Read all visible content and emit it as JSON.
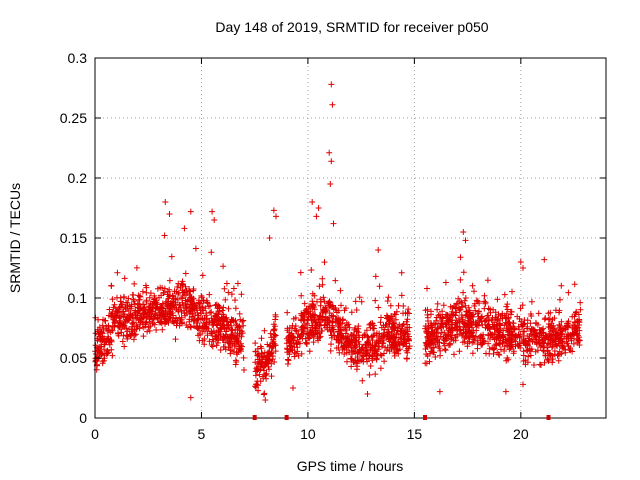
{
  "chart_data": {
    "type": "scatter",
    "title": "Day 148 of 2019, SRMTID for receiver p050",
    "xlabel": "GPS time / hours",
    "ylabel": "SRMTID / TECUs",
    "xlim": [
      0,
      24
    ],
    "ylim": [
      0,
      0.3
    ],
    "xticks": [
      0,
      5,
      10,
      15,
      20
    ],
    "xtick_labels": [
      "0",
      "5",
      "10",
      "15",
      "20"
    ],
    "yticks": [
      0,
      0.05,
      0.1,
      0.15,
      0.2,
      0.25,
      0.3
    ],
    "ytick_labels": [
      "0",
      "0.05",
      "0.1",
      "0.15",
      "0.2",
      "0.25",
      "0.3"
    ],
    "grid": true,
    "marker": "plus",
    "color": "#ff0000",
    "marker_color": "#e00000",
    "gap_marker_color": "#d00000",
    "gap_markers_x": [
      7.5,
      9.0,
      15.5,
      21.3
    ],
    "density_profile": {
      "segments": [
        {
          "x_start": 0.0,
          "x_end": 7.0,
          "mean_profile": [
            [
              0.0,
              0.055
            ],
            [
              0.5,
              0.065
            ],
            [
              1.0,
              0.08
            ],
            [
              2.0,
              0.085
            ],
            [
              3.0,
              0.09
            ],
            [
              4.0,
              0.095
            ],
            [
              5.0,
              0.085
            ],
            [
              6.0,
              0.075
            ],
            [
              7.0,
              0.065
            ]
          ]
        },
        {
          "x_start": 7.5,
          "x_end": 8.5,
          "mean_profile": [
            [
              7.5,
              0.04
            ],
            [
              8.0,
              0.045
            ],
            [
              8.5,
              0.07
            ]
          ]
        },
        {
          "x_start": 9.0,
          "x_end": 14.8,
          "mean_profile": [
            [
              9.0,
              0.06
            ],
            [
              10.0,
              0.08
            ],
            [
              11.0,
              0.085
            ],
            [
              12.0,
              0.06
            ],
            [
              13.0,
              0.06
            ],
            [
              14.0,
              0.07
            ],
            [
              14.8,
              0.065
            ]
          ]
        },
        {
          "x_start": 15.5,
          "x_end": 22.8,
          "mean_profile": [
            [
              15.5,
              0.065
            ],
            [
              17.0,
              0.08
            ],
            [
              18.5,
              0.075
            ],
            [
              20.0,
              0.065
            ],
            [
              21.5,
              0.065
            ],
            [
              22.8,
              0.075
            ]
          ]
        }
      ]
    },
    "outliers": [
      {
        "x": 3.3,
        "y": 0.18
      },
      {
        "x": 3.5,
        "y": 0.17
      },
      {
        "x": 4.5,
        "y": 0.172
      },
      {
        "x": 4.2,
        "y": 0.158
      },
      {
        "x": 5.5,
        "y": 0.172
      },
      {
        "x": 5.6,
        "y": 0.165
      },
      {
        "x": 8.4,
        "y": 0.173
      },
      {
        "x": 8.5,
        "y": 0.168
      },
      {
        "x": 8.2,
        "y": 0.15
      },
      {
        "x": 10.2,
        "y": 0.18
      },
      {
        "x": 10.5,
        "y": 0.175
      },
      {
        "x": 10.4,
        "y": 0.168
      },
      {
        "x": 11.1,
        "y": 0.278
      },
      {
        "x": 11.15,
        "y": 0.261
      },
      {
        "x": 11.0,
        "y": 0.221
      },
      {
        "x": 11.1,
        "y": 0.214
      },
      {
        "x": 11.05,
        "y": 0.195
      },
      {
        "x": 11.2,
        "y": 0.162
      },
      {
        "x": 13.3,
        "y": 0.14
      },
      {
        "x": 17.3,
        "y": 0.155
      },
      {
        "x": 17.4,
        "y": 0.148
      },
      {
        "x": 20.0,
        "y": 0.13
      },
      {
        "x": 20.1,
        "y": 0.125
      },
      {
        "x": 21.1,
        "y": 0.132
      },
      {
        "x": 4.5,
        "y": 0.017
      },
      {
        "x": 7.0,
        "y": 0.04
      },
      {
        "x": 8.0,
        "y": 0.015
      },
      {
        "x": 9.3,
        "y": 0.025
      },
      {
        "x": 12.8,
        "y": 0.02
      },
      {
        "x": 16.2,
        "y": 0.022
      },
      {
        "x": 19.3,
        "y": 0.022
      },
      {
        "x": 20.1,
        "y": 0.028
      }
    ]
  }
}
